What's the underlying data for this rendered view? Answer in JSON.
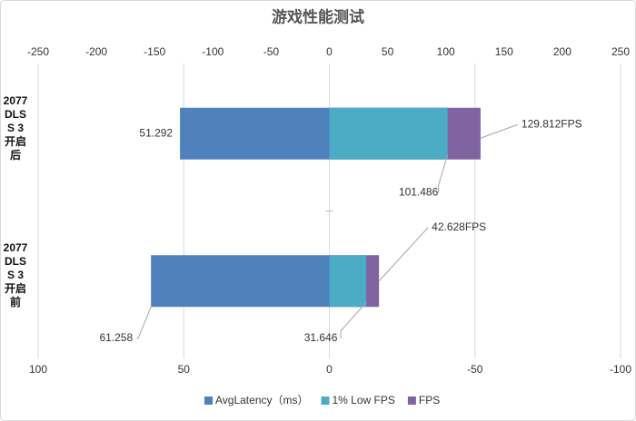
{
  "chart_data": {
    "type": "overlap-bar",
    "title": "游戏性能测试",
    "categories": [
      "2077 DLSS 3 开启后",
      "2077 DLSS 3 开启前"
    ],
    "series": [
      {
        "name": "AvgLatency（ms）",
        "color": "#4f81bd",
        "values": [
          51.292,
          61.258
        ],
        "axis": "x2"
      },
      {
        "name": "1% Low FPS",
        "color": "#4bacc6",
        "values": [
          101.486,
          31.646
        ]
      },
      {
        "name": "FPS",
        "color": "#8064a2",
        "values": [
          129.812,
          42.628
        ],
        "value_labels": [
          "129.812FPS",
          "42.628FPS"
        ]
      }
    ],
    "xlim": [
      -250,
      250
    ],
    "xticks": [
      -250,
      -200,
      -150,
      -100,
      -50,
      0,
      50,
      100,
      150,
      200,
      250
    ],
    "x2lim": [
      100,
      -100
    ],
    "x2ticks": [
      100,
      50,
      0,
      -50,
      -100
    ],
    "grid": true,
    "legend": "bottom"
  }
}
